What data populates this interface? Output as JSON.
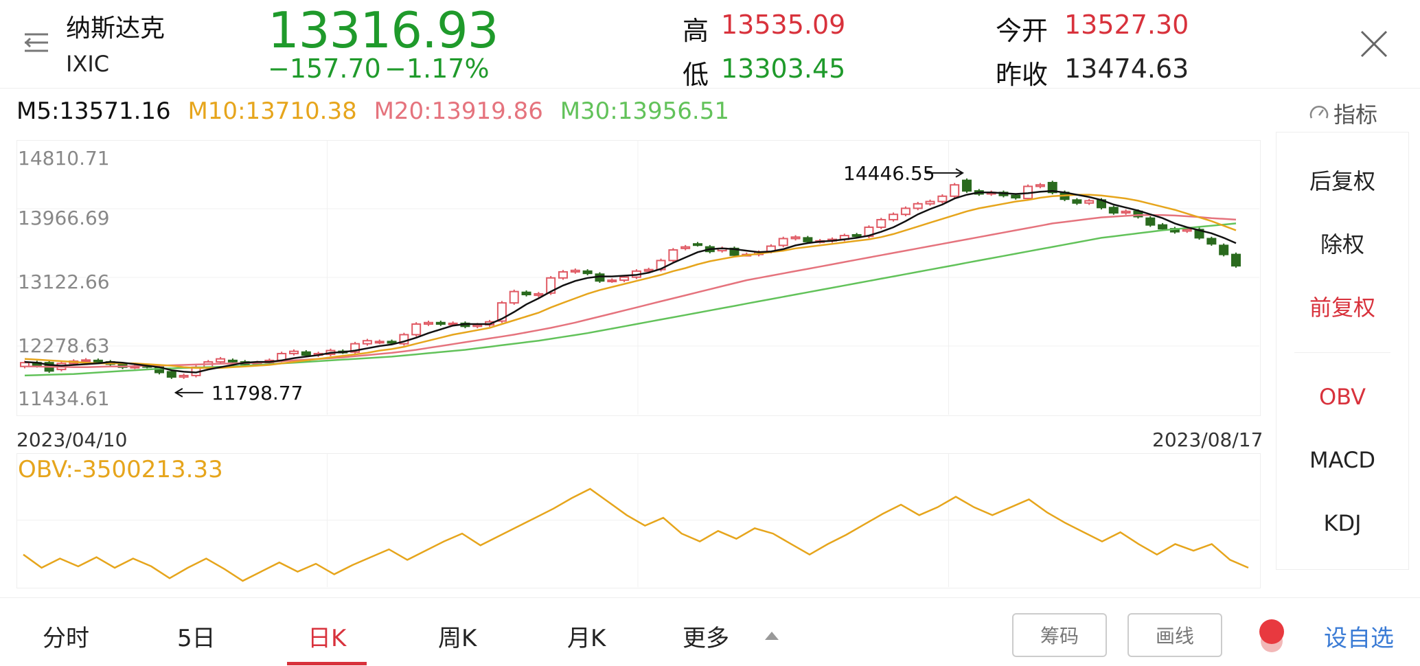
{
  "header": {
    "name": "纳斯达克",
    "code": "IXIC",
    "price": "13316.93",
    "change": "−157.70",
    "change_pct": "−1.17%",
    "high_label": "高",
    "high_value": "13535.09",
    "low_label": "低",
    "low_value": "13303.45",
    "open_label": "今开",
    "open_value": "13527.30",
    "prev_close_label": "昨收",
    "prev_close_value": "13474.63"
  },
  "ma": {
    "m5": "M5:13571.16",
    "m10": "M10:13710.38",
    "m20": "M20:13919.86",
    "m30": "M30:13956.51",
    "colors": {
      "m5": "#111111",
      "m10": "#e6a51c",
      "m20": "#e5737d",
      "m30": "#62c25a"
    }
  },
  "indicator_button": "指标",
  "chart_data": {
    "type": "candlestick",
    "y_ticks": [
      "14810.71",
      "13966.69",
      "13122.66",
      "12278.63",
      "11434.61"
    ],
    "ylim": [
      11434.61,
      14810.71
    ],
    "start_date": "2023/04/10",
    "end_date": "2023/08/17",
    "high_annotation": "14446.55",
    "low_annotation": "11798.77",
    "up_color": "#e05a64",
    "down_color": "#2a6a1e",
    "close": [
      12050,
      12010,
      11940,
      12040,
      12070,
      12085,
      12060,
      12030,
      11990,
      12000,
      12000,
      11920,
      11860,
      11880,
      11990,
      12060,
      12100,
      12070,
      12030,
      12050,
      12080,
      12170,
      12200,
      12150,
      12170,
      12210,
      12190,
      12300,
      12340,
      12330,
      12310,
      12420,
      12560,
      12580,
      12560,
      12570,
      12530,
      12550,
      12590,
      12840,
      12990,
      12950,
      12960,
      13170,
      13250,
      13270,
      13230,
      13130,
      13140,
      13180,
      13260,
      13280,
      13400,
      13540,
      13580,
      13610,
      13520,
      13560,
      13470,
      13480,
      13510,
      13590,
      13690,
      13710,
      13650,
      13660,
      13680,
      13730,
      13720,
      13840,
      13940,
      14010,
      14090,
      14150,
      14180,
      14250,
      14400,
      14320,
      14280,
      14300,
      14260,
      14230,
      14380,
      14400,
      14300,
      14210,
      14160,
      14190,
      14100,
      14030,
      14050,
      13980,
      13870,
      13820,
      13780,
      13810,
      13700,
      13620,
      13480,
      13330
    ],
    "open": [
      12000,
      12050,
      12050,
      11960,
      12040,
      12070,
      12080,
      12060,
      12020,
      11990,
      12010,
      11990,
      11930,
      11860,
      11880,
      11990,
      12060,
      12080,
      12060,
      12030,
      12050,
      12080,
      12170,
      12190,
      12150,
      12160,
      12200,
      12190,
      12300,
      12320,
      12330,
      12300,
      12420,
      12560,
      12580,
      12560,
      12570,
      12530,
      12550,
      12600,
      12840,
      12980,
      12940,
      12970,
      13170,
      13250,
      13260,
      13220,
      13130,
      13140,
      13180,
      13260,
      13280,
      13400,
      13560,
      13620,
      13580,
      13530,
      13560,
      13480,
      13480,
      13520,
      13600,
      13690,
      13700,
      13650,
      13660,
      13680,
      13740,
      13720,
      13840,
      13940,
      14010,
      14090,
      14150,
      14180,
      14250,
      14460,
      14320,
      14280,
      14300,
      14260,
      14220,
      14380,
      14430,
      14300,
      14200,
      14160,
      14200,
      14100,
      14030,
      14050,
      13960,
      13870,
      13820,
      13790,
      13810,
      13690,
      13600,
      13480
    ],
    "ma5": [
      12060,
      12050,
      12020,
      12010,
      12020,
      12030,
      12040,
      12060,
      12050,
      12030,
      12010,
      11990,
      11950,
      11930,
      11920,
      11960,
      11990,
      12020,
      12050,
      12060,
      12060,
      12080,
      12110,
      12130,
      12150,
      12180,
      12190,
      12210,
      12240,
      12270,
      12290,
      12330,
      12380,
      12440,
      12490,
      12540,
      12560,
      12560,
      12560,
      12630,
      12720,
      12820,
      12900,
      12990,
      13070,
      13130,
      13170,
      13190,
      13190,
      13200,
      13210,
      13240,
      13290,
      13370,
      13440,
      13510,
      13550,
      13560,
      13550,
      13530,
      13510,
      13520,
      13550,
      13600,
      13630,
      13650,
      13660,
      13680,
      13700,
      13730,
      13780,
      13840,
      13920,
      14010,
      14080,
      14140,
      14220,
      14270,
      14300,
      14300,
      14290,
      14280,
      14290,
      14310,
      14320,
      14300,
      14270,
      14240,
      14200,
      14140,
      14100,
      14060,
      14010,
      13960,
      13890,
      13840,
      13800,
      13760,
      13700,
      13630
    ],
    "ma10": [
      12100,
      12090,
      12080,
      12070,
      12060,
      12050,
      12040,
      12040,
      12040,
      12040,
      12030,
      12020,
      12010,
      11990,
      11980,
      11980,
      11980,
      11990,
      12000,
      12010,
      12020,
      12040,
      12060,
      12080,
      12100,
      12120,
      12140,
      12160,
      12180,
      12210,
      12230,
      12260,
      12300,
      12340,
      12380,
      12420,
      12450,
      12480,
      12510,
      12560,
      12610,
      12660,
      12710,
      12780,
      12840,
      12900,
      12960,
      13010,
      13050,
      13090,
      13130,
      13170,
      13210,
      13260,
      13300,
      13350,
      13390,
      13420,
      13450,
      13470,
      13490,
      13510,
      13530,
      13560,
      13580,
      13600,
      13620,
      13640,
      13660,
      13680,
      13710,
      13750,
      13800,
      13850,
      13900,
      13950,
      14000,
      14050,
      14090,
      14120,
      14150,
      14180,
      14200,
      14230,
      14250,
      14260,
      14270,
      14270,
      14260,
      14240,
      14220,
      14190,
      14150,
      14110,
      14070,
      14020,
      13970,
      13920,
      13860,
      13800
    ],
    "ma20": [
      12000,
      12000,
      11995,
      11995,
      11990,
      11990,
      11995,
      12000,
      12000,
      12005,
      12010,
      12010,
      12015,
      12020,
      12025,
      12030,
      12035,
      12040,
      12045,
      12050,
      12060,
      12070,
      12080,
      12090,
      12100,
      12110,
      12120,
      12135,
      12150,
      12165,
      12180,
      12200,
      12220,
      12245,
      12270,
      12295,
      12320,
      12345,
      12370,
      12395,
      12420,
      12450,
      12480,
      12510,
      12545,
      12580,
      12620,
      12660,
      12700,
      12740,
      12780,
      12820,
      12860,
      12900,
      12940,
      12980,
      13020,
      13060,
      13100,
      13140,
      13170,
      13200,
      13230,
      13260,
      13290,
      13320,
      13350,
      13380,
      13410,
      13440,
      13470,
      13500,
      13530,
      13560,
      13590,
      13620,
      13650,
      13680,
      13710,
      13740,
      13770,
      13800,
      13830,
      13860,
      13890,
      13910,
      13930,
      13950,
      13970,
      13980,
      13990,
      14000,
      14000,
      14000,
      13995,
      13985,
      13975,
      13960,
      13950,
      13940
    ],
    "ma30": [
      11880,
      11885,
      11890,
      11895,
      11900,
      11910,
      11920,
      11930,
      11940,
      11950,
      11960,
      11970,
      11975,
      11980,
      11985,
      11990,
      11995,
      12000,
      12010,
      12020,
      12030,
      12040,
      12050,
      12060,
      12070,
      12080,
      12090,
      12100,
      12110,
      12120,
      12130,
      12145,
      12160,
      12175,
      12190,
      12205,
      12220,
      12240,
      12260,
      12280,
      12300,
      12320,
      12340,
      12365,
      12390,
      12415,
      12440,
      12470,
      12500,
      12530,
      12560,
      12590,
      12620,
      12650,
      12680,
      12710,
      12740,
      12770,
      12800,
      12830,
      12860,
      12890,
      12920,
      12950,
      12980,
      13010,
      13040,
      13070,
      13100,
      13130,
      13160,
      13190,
      13220,
      13250,
      13280,
      13310,
      13340,
      13370,
      13400,
      13430,
      13460,
      13490,
      13520,
      13550,
      13580,
      13610,
      13640,
      13670,
      13700,
      13720,
      13740,
      13760,
      13780,
      13800,
      13815,
      13830,
      13845,
      13860,
      13875,
      13890
    ],
    "obv": {
      "label": "OBV:-3500213.33",
      "color": "#e6a51c",
      "values": [
        40,
        30,
        37,
        31,
        38,
        30,
        37,
        31,
        22,
        30,
        37,
        29,
        20,
        27,
        34,
        27,
        33,
        25,
        32,
        38,
        44,
        36,
        43,
        50,
        56,
        47,
        54,
        61,
        68,
        75,
        83,
        90,
        80,
        70,
        62,
        68,
        56,
        50,
        58,
        52,
        60,
        56,
        48,
        40,
        48,
        55,
        63,
        71,
        78,
        70,
        76,
        84,
        76,
        70,
        76,
        82,
        72,
        64,
        57,
        50,
        57,
        48,
        40,
        48,
        43,
        48,
        36,
        30
      ]
    }
  },
  "side_panel": {
    "items": [
      "后复权",
      "除权",
      "前复权",
      "OBV",
      "MACD",
      "KDJ"
    ],
    "active": [
      "前复权",
      "OBV"
    ]
  },
  "bottom_bar": {
    "tabs": [
      "分时",
      "5日",
      "日K",
      "周K",
      "月K",
      "更多"
    ],
    "active_tab": "日K",
    "chip_button": "筹码",
    "draw_button": "画线",
    "favorite": "设自选"
  }
}
